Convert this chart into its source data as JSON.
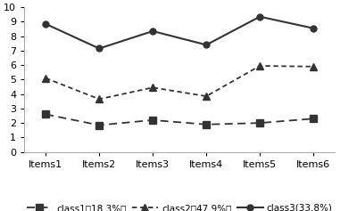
{
  "categories": [
    "Items1",
    "Items2",
    "Items3",
    "Items4",
    "Items5",
    "Items6"
  ],
  "class1": [
    2.6,
    1.85,
    2.2,
    1.9,
    2.0,
    2.3
  ],
  "class2": [
    5.1,
    3.65,
    4.45,
    3.85,
    5.95,
    5.9
  ],
  "class3": [
    8.85,
    7.15,
    8.35,
    7.4,
    9.35,
    8.55
  ],
  "class1_label": "class1（18.3%）",
  "class2_label": "class2（47.9%）",
  "class3_label": "class3(33.8%)",
  "ylim": [
    0,
    10
  ],
  "yticks": [
    0,
    1,
    2,
    3,
    4,
    5,
    6,
    7,
    8,
    9,
    10
  ],
  "bg_color": "#ffffff",
  "line_color": "#333333",
  "tick_fontsize": 8,
  "legend_fontsize": 7.5
}
